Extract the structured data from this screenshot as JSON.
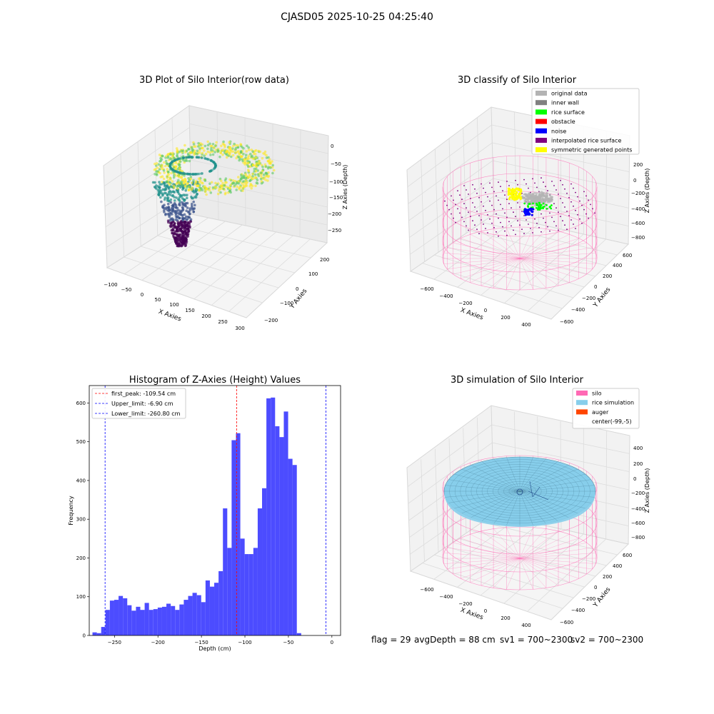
{
  "figure": {
    "suptitle": "CJASD05 2025-10-25 04:25:40"
  },
  "footer": {
    "flag": "flag = 29",
    "avg": "avgDepth = 88 cm",
    "sv1": "sv1 = 700~2300",
    "sv2": "sv2 = 700~2300"
  },
  "chart_data": [
    {
      "type": "scatter",
      "panel": "3d-raw",
      "title": "3D Plot of Silo Interior(row data)",
      "xlabel": "X Axies",
      "ylabel": "Y Axies",
      "zlabel": "Z Axies (Depth)",
      "x_ticks": [
        "−100",
        "−50",
        "0",
        "50",
        "100",
        "150",
        "200",
        "250",
        "300"
      ],
      "y_ticks": [
        "−200",
        "−100",
        "0",
        "100",
        "200"
      ],
      "z_ticks": [
        "0",
        "−50",
        "−100",
        "−150",
        "−200",
        "−250"
      ],
      "colormap": [
        "#440154",
        "#3b528b",
        "#21918c",
        "#5ec962",
        "#fde725"
      ]
    },
    {
      "type": "scatter",
      "panel": "3d-classify",
      "title": "3D classify of Silo Interior",
      "xlabel": "X Axies",
      "ylabel": "Y Axies",
      "zlabel": "Z Axies (Depth)",
      "x_ticks": [
        "−600",
        "−400",
        "−200",
        "0",
        "200",
        "400"
      ],
      "y_ticks": [
        "−600",
        "−400",
        "−200",
        "0",
        "200",
        "400",
        "600"
      ],
      "z_ticks": [
        "200",
        "0",
        "−200",
        "−400",
        "−600",
        "−800"
      ],
      "legend": [
        {
          "label": "original data",
          "color": "#b3b3b3"
        },
        {
          "label": "inner wall",
          "color": "#808080"
        },
        {
          "label": "rice surface",
          "color": "#00ff00"
        },
        {
          "label": "obstacle",
          "color": "#ff0000"
        },
        {
          "label": "noise",
          "color": "#0000ff"
        },
        {
          "label": "interpolated rice surface",
          "color": "#800080"
        },
        {
          "label": "symmetric generated points",
          "color": "#ffff00"
        }
      ],
      "wire_color": "#ff69b4"
    },
    {
      "type": "bar",
      "panel": "histogram",
      "title": "Histogram of Z-Axies (Height) Values",
      "xlabel": "Depth (cm)",
      "ylabel": "Frequency",
      "xlim": [
        -279,
        10
      ],
      "ylim": [
        0,
        645
      ],
      "x_ticks": [
        -250,
        -200,
        -150,
        -100,
        -50,
        0
      ],
      "x_tick_labels": [
        "−250",
        "−200",
        "−150",
        "−100",
        "−50",
        "0"
      ],
      "y_ticks": [
        0,
        100,
        200,
        300,
        400,
        500,
        600
      ],
      "bin_start": -275.3,
      "bin_width": 5.0,
      "values": [
        8,
        6,
        22,
        66,
        90,
        92,
        102,
        96,
        78,
        64,
        74,
        66,
        84,
        66,
        68,
        72,
        74,
        82,
        76,
        66,
        80,
        92,
        102,
        110,
        104,
        86,
        142,
        126,
        136,
        166,
        328,
        226,
        504,
        522,
        250,
        210,
        210,
        226,
        328,
        380,
        612,
        614,
        540,
        512,
        578,
        456,
        440,
        6
      ],
      "bar_color": "#4c4cff",
      "vlines": [
        {
          "label": "first_peak: -109.54 cm",
          "x": -109.54,
          "color": "#ff0000"
        },
        {
          "label": "Upper_limit: -6.90 cm",
          "x": -6.9,
          "color": "#0000ff"
        },
        {
          "label": "Lower_limit: -260.80 cm",
          "x": -260.8,
          "color": "#0000ff"
        }
      ]
    },
    {
      "type": "scatter",
      "panel": "3d-simulation",
      "title": "3D simulation of Silo Interior",
      "xlabel": "X Axies",
      "ylabel": "Y Axies",
      "zlabel": "Z Axies (Depth)",
      "x_ticks": [
        "−600",
        "−400",
        "−200",
        "0",
        "200",
        "400"
      ],
      "y_ticks": [
        "−600",
        "−400",
        "−200",
        "0",
        "200",
        "400",
        "600"
      ],
      "z_ticks": [
        "400",
        "200",
        "0",
        "−200",
        "−400",
        "−600",
        "−800"
      ],
      "legend": [
        {
          "label": "silo",
          "color": "#ff69b4"
        },
        {
          "label": "rice simulation",
          "color": "#87ceeb"
        },
        {
          "label": "auger",
          "color": "#ff4500"
        },
        {
          "label": "center(-99,-5)",
          "color": "#ffffff"
        }
      ]
    }
  ]
}
